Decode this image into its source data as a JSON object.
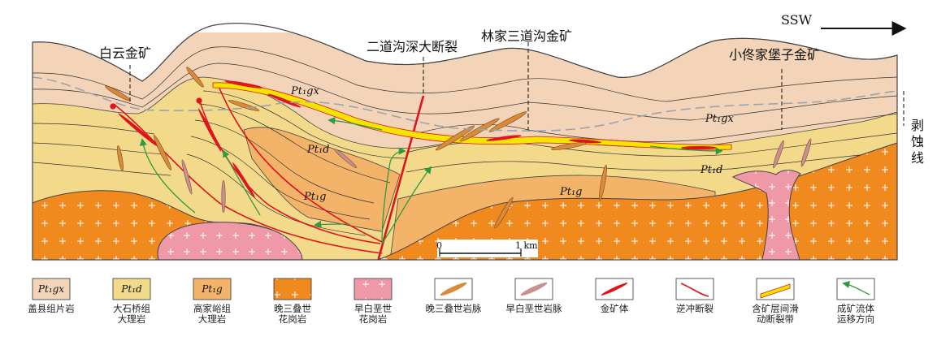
{
  "direction": {
    "label": "SSW"
  },
  "section_labels": {
    "baiyun": "白云金矿",
    "erdaogou_fault": "二道沟深大断裂",
    "linjia": "林家三道沟金矿",
    "xiaotong": "小佟家堡子金矿",
    "erosion_line": "剥蚀线"
  },
  "unit_labels": {
    "pt_gx_1": "Pt₁gx",
    "pt_gx_2": "Pt₁gx",
    "pt_d_1": "Pt₁d",
    "pt_d_2": "Pt₁d",
    "pt_g_1": "Pt₁g",
    "pt_g_2": "Pt₁g"
  },
  "scale_bar": {
    "zero": "0",
    "length": "1 km"
  },
  "legend": [
    {
      "id": "gaixian",
      "swatch_text": "Pt₁gx",
      "caption": [
        "盖县组片岩"
      ],
      "color": "#f4d4b8"
    },
    {
      "id": "dashiqiao",
      "swatch_text": "Pt₁d",
      "caption": [
        "大石桥组",
        "大理岩"
      ],
      "color": "#f3d98a"
    },
    {
      "id": "gaojiayu",
      "swatch_text": "Pt₁g",
      "caption": [
        "高家峪组",
        "大理岩"
      ],
      "color": "#f3b46a"
    },
    {
      "id": "late_triassic_granite",
      "swatch_text": "",
      "caption": [
        "晚三叠世",
        "花岗岩"
      ],
      "color": "#f08a1e"
    },
    {
      "id": "early_cretaceous_granite",
      "swatch_text": "",
      "caption": [
        "早白垩世",
        "花岗岩"
      ],
      "color": "#ef99a8"
    },
    {
      "id": "late_triassic_dyke",
      "swatch_text": "",
      "caption": [
        "晚三叠世岩脉"
      ],
      "color": "#d98a3a"
    },
    {
      "id": "early_cretaceous_dyke",
      "swatch_text": "",
      "caption": [
        "早白垩世岩脉"
      ],
      "color": "#c99090"
    },
    {
      "id": "gold_orebody",
      "swatch_text": "",
      "caption": [
        "金矿体"
      ],
      "color": "#e0141c"
    },
    {
      "id": "thrust_fault",
      "swatch_text": "",
      "caption": [
        "逆冲断裂"
      ],
      "color": "#e0141c"
    },
    {
      "id": "slip_fault_zone",
      "swatch_text": "",
      "caption": [
        "含矿层间滑",
        "动断裂带"
      ],
      "color": "#f5e400"
    },
    {
      "id": "fluid_direction",
      "swatch_text": "",
      "caption": [
        "成矿流体",
        "运移方向"
      ],
      "color": "#2f9a3e"
    }
  ],
  "colors": {
    "gaixian": "#f4d4b8",
    "dashiqiao": "#f3d98a",
    "gaojiayu": "#f3b46a",
    "granite_lt": "#f08a1e",
    "granite_ec": "#ef99a8",
    "fault": "#e0141c",
    "fluid": "#2f9a3e",
    "erosion": "#9aa4ad"
  }
}
